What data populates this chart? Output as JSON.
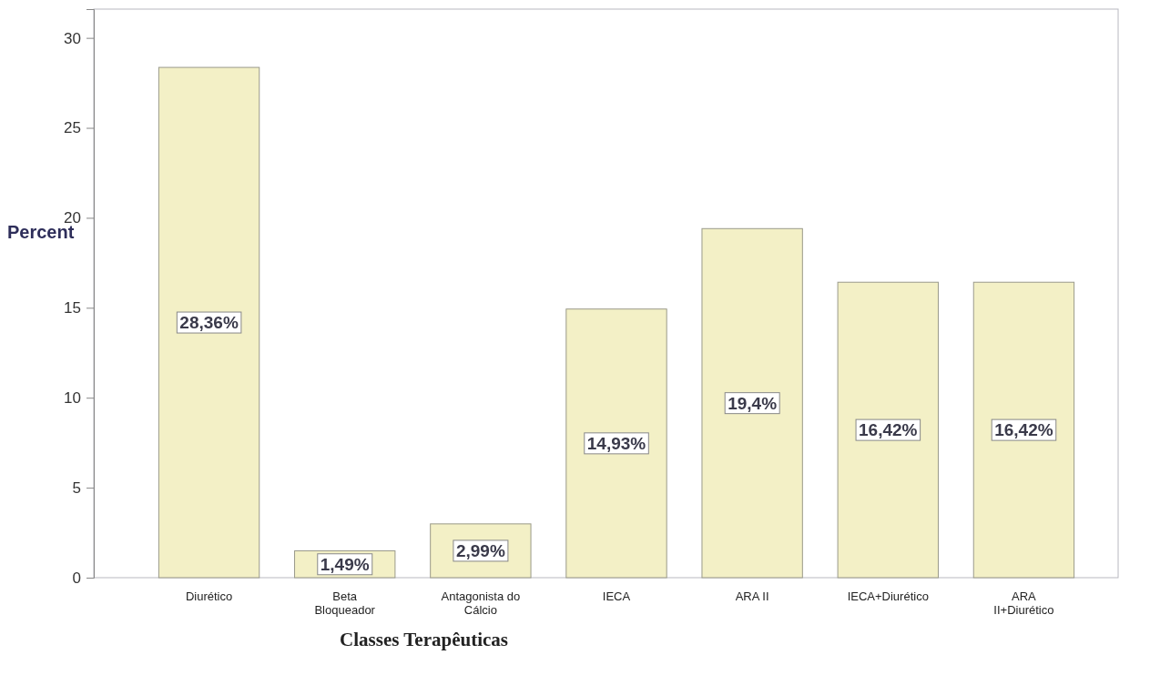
{
  "chart_data": {
    "type": "bar",
    "xlabel": "Classes Terapêuticas",
    "ylabel": "Percent",
    "categories": [
      "Diurético",
      "Beta\nBloqueador",
      "Antagonista do\nCálcio",
      "IECA",
      "ARA II",
      "IECA+Diurético",
      "ARA\nII+Diurético"
    ],
    "values": [
      28.36,
      1.49,
      2.99,
      14.93,
      19.4,
      16.42,
      16.42
    ],
    "value_labels": [
      "28,36%",
      "1,49%",
      "2,99%",
      "14,93%",
      "19,4%",
      "16,42%",
      "16,42%"
    ],
    "color": "#f3f0c6",
    "ylim": [
      0,
      31.6
    ],
    "yticks": [
      0,
      5,
      10,
      15,
      20,
      25,
      30
    ],
    "grid": false
  }
}
